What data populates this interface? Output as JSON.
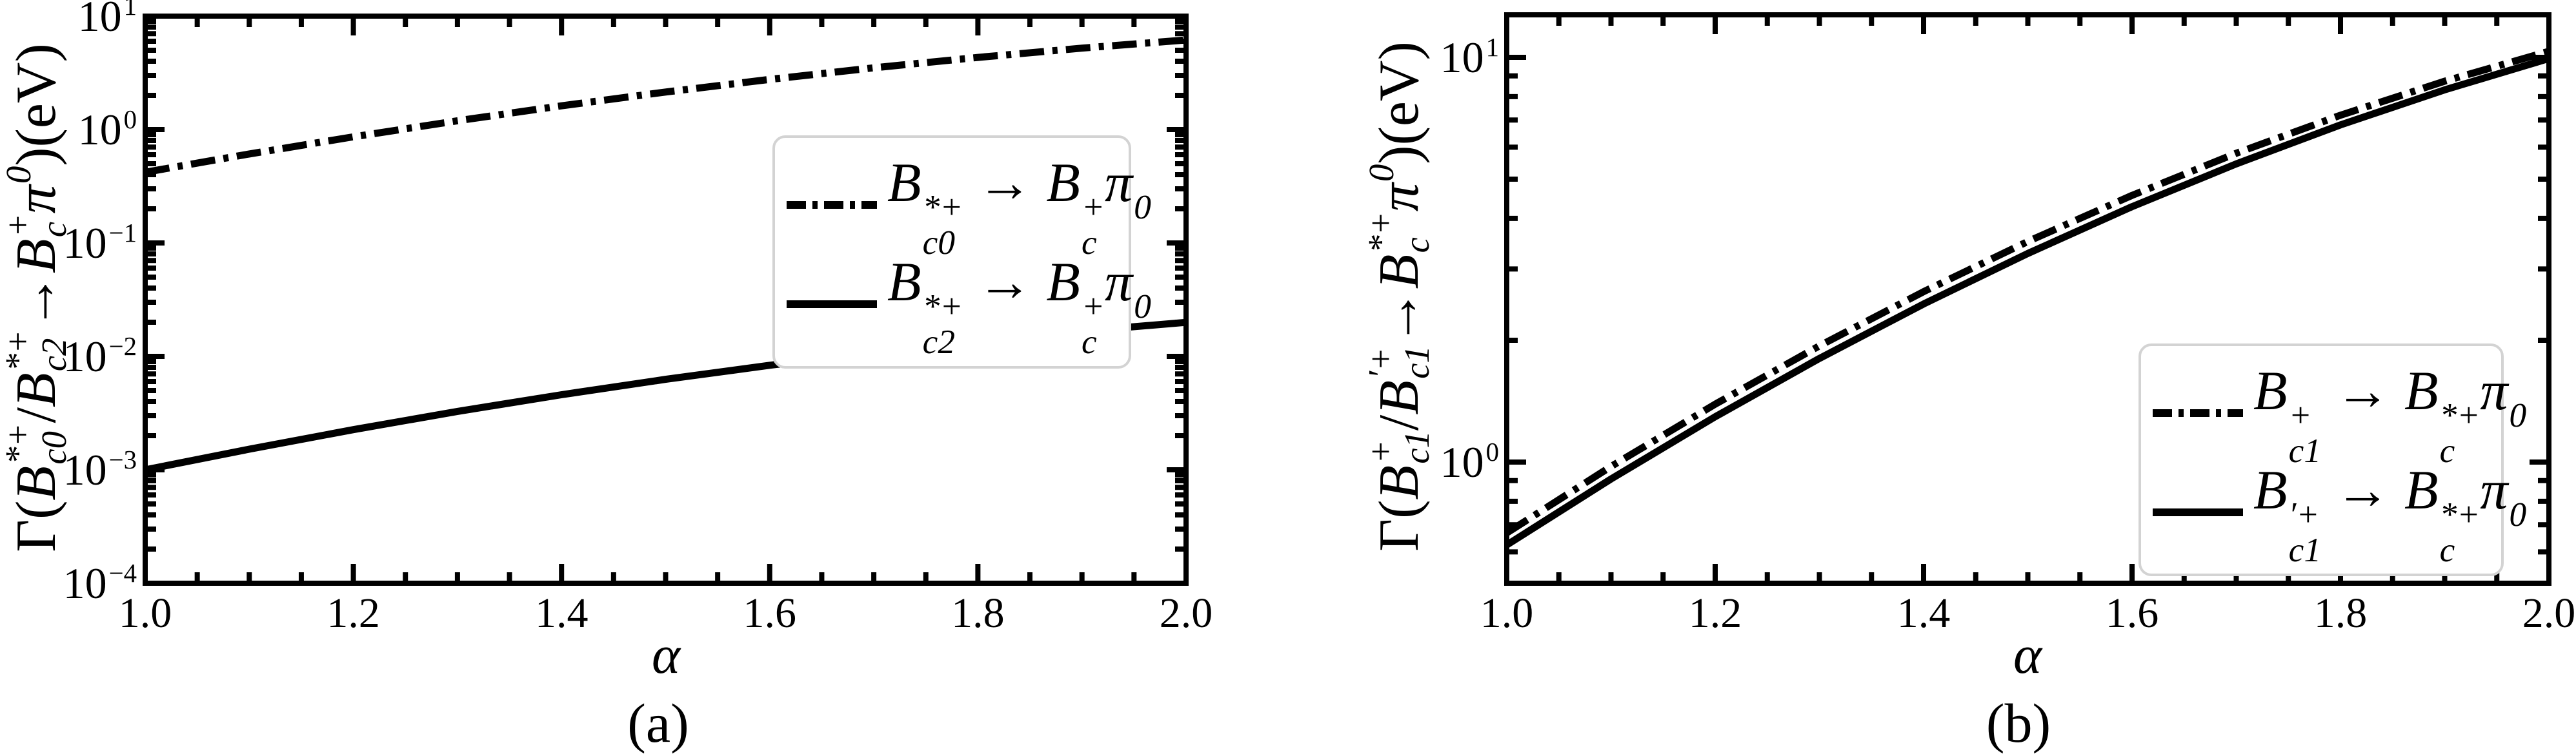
{
  "figure": {
    "background": "#ffffff",
    "ink": "#000000",
    "legend_border_color": "#d3d3d3"
  },
  "panels": {
    "a": {
      "caption": "(a)",
      "xlabel": "α",
      "x_tick_labels": [
        "1.0",
        "1.2",
        "1.4",
        "1.6",
        "1.8",
        "2.0"
      ],
      "y_tick_labels": [
        {
          "m": "10",
          "e": "1"
        },
        {
          "m": "10",
          "e": "0"
        },
        {
          "m": "10",
          "e": "−1"
        },
        {
          "m": "10",
          "e": "−2"
        },
        {
          "m": "10",
          "e": "−3"
        },
        {
          "m": "10",
          "e": "−4"
        }
      ],
      "ylabel_segments": [
        {
          "t": "Γ("
        },
        {
          "t": "B",
          "i": 1,
          "sup": "*+",
          "sub": "c0"
        },
        {
          "t": "/"
        },
        {
          "t": "B",
          "i": 1,
          "sup": "*+",
          "sub": "c2"
        },
        {
          "t": " → "
        },
        {
          "t": "B",
          "i": 1,
          "sup": "+",
          "sub": "c"
        },
        {
          "t": "π",
          "i": 1,
          "sup": "0"
        },
        {
          "t": ")(eV)"
        }
      ],
      "legend": [
        {
          "style": "dashdot",
          "segments": [
            {
              "t": "B",
              "i": 1,
              "sup": "*+",
              "sub": "c0"
            },
            {
              "t": " → "
            },
            {
              "t": "B",
              "i": 1,
              "sup": "+",
              "sub": "c"
            },
            {
              "t": "π",
              "i": 1,
              "sup": "0"
            }
          ]
        },
        {
          "style": "solid",
          "segments": [
            {
              "t": "B",
              "i": 1,
              "sup": "*+",
              "sub": "c2"
            },
            {
              "t": " → "
            },
            {
              "t": "B",
              "i": 1,
              "sup": "+",
              "sub": "c"
            },
            {
              "t": "π",
              "i": 1,
              "sup": "0"
            }
          ]
        }
      ]
    },
    "b": {
      "caption": "(b)",
      "xlabel": "α",
      "x_tick_labels": [
        "1.0",
        "1.2",
        "1.4",
        "1.6",
        "1.8",
        "2.0"
      ],
      "y_tick_labels": [
        {
          "m": "10",
          "e": "1"
        },
        {
          "m": "10",
          "e": "0"
        }
      ],
      "ylabel_segments": [
        {
          "t": "Γ("
        },
        {
          "t": "B",
          "i": 1,
          "sup": "+",
          "sub": "c1"
        },
        {
          "t": "/"
        },
        {
          "t": "B",
          "i": 1,
          "sup": "′+",
          "sub": "c1"
        },
        {
          "t": " → "
        },
        {
          "t": "B",
          "i": 1,
          "sup": "*+",
          "sub": "c"
        },
        {
          "t": "π",
          "i": 1,
          "sup": "0"
        },
        {
          "t": ")(eV)"
        }
      ],
      "legend": [
        {
          "style": "dashdot",
          "segments": [
            {
              "t": "B",
              "i": 1,
              "sup": "+",
              "sub": "c1"
            },
            {
              "t": " → "
            },
            {
              "t": "B",
              "i": 1,
              "sup": "*+",
              "sub": "c"
            },
            {
              "t": "π",
              "i": 1,
              "sup": "0"
            }
          ]
        },
        {
          "style": "solid",
          "segments": [
            {
              "t": "B",
              "i": 1,
              "sup": "′+",
              "sub": "c1"
            },
            {
              "t": " → "
            },
            {
              "t": "B",
              "i": 1,
              "sup": "*+",
              "sub": "c"
            },
            {
              "t": "π",
              "i": 1,
              "sup": "0"
            }
          ]
        }
      ]
    }
  },
  "chart_data": [
    {
      "type": "line",
      "panel": "a",
      "caption": "(a)",
      "title": "",
      "xlabel": "α",
      "ylabel": "Γ(B*+_c0/B*+_c2 → B+_c π0)(eV)",
      "x_range": [
        1.0,
        2.0
      ],
      "x_major_tick_step": 0.2,
      "x_minor_tick_step": 0.05,
      "y_scale": "log",
      "y_range": [
        0.0001,
        10
      ],
      "grid": false,
      "legend_position": "center right",
      "x": [
        1.0,
        1.1,
        1.2,
        1.3,
        1.4,
        1.5,
        1.6,
        1.7,
        1.8,
        1.9,
        2.0
      ],
      "series": [
        {
          "name": "B*+_c0 → B+_c π0",
          "line_style": "dashdot",
          "values": [
            0.42,
            0.609,
            0.863,
            1.195,
            1.618,
            2.141,
            2.768,
            3.5,
            4.325,
            5.222,
            6.166
          ]
        },
        {
          "name": "B*+_c2 → B+_c π0",
          "line_style": "solid",
          "values": [
            0.001,
            0.00152,
            0.00226,
            0.00327,
            0.00459,
            0.00628,
            0.00835,
            0.01082,
            0.01364,
            0.01672,
            0.01995
          ]
        }
      ]
    },
    {
      "type": "line",
      "panel": "b",
      "caption": "(b)",
      "title": "",
      "xlabel": "α",
      "ylabel": "Γ(B+_c1/B'+_c1 → B*+_c π0)(eV)",
      "x_range": [
        1.0,
        2.0
      ],
      "x_major_tick_step": 0.2,
      "x_minor_tick_step": 0.05,
      "y_scale": "log",
      "y_range": [
        0.5,
        12.7
      ],
      "grid": false,
      "legend_position": "lower right",
      "x": [
        1.0,
        1.1,
        1.2,
        1.3,
        1.4,
        1.5,
        1.6,
        1.7,
        1.8,
        1.9,
        2.0
      ],
      "series": [
        {
          "name": "B+_c1 → B*+_c π0",
          "line_style": "dashdot",
          "values": [
            0.668,
            0.975,
            1.39,
            1.937,
            2.636,
            3.508,
            4.56,
            5.794,
            7.194,
            8.73,
            10.351
          ]
        },
        {
          "name": "B'+_c1 → B*+_c π0",
          "line_style": "solid",
          "values": [
            0.624,
            0.908,
            1.294,
            1.803,
            2.458,
            3.277,
            4.276,
            5.455,
            6.809,
            8.314,
            9.931
          ]
        }
      ]
    }
  ]
}
